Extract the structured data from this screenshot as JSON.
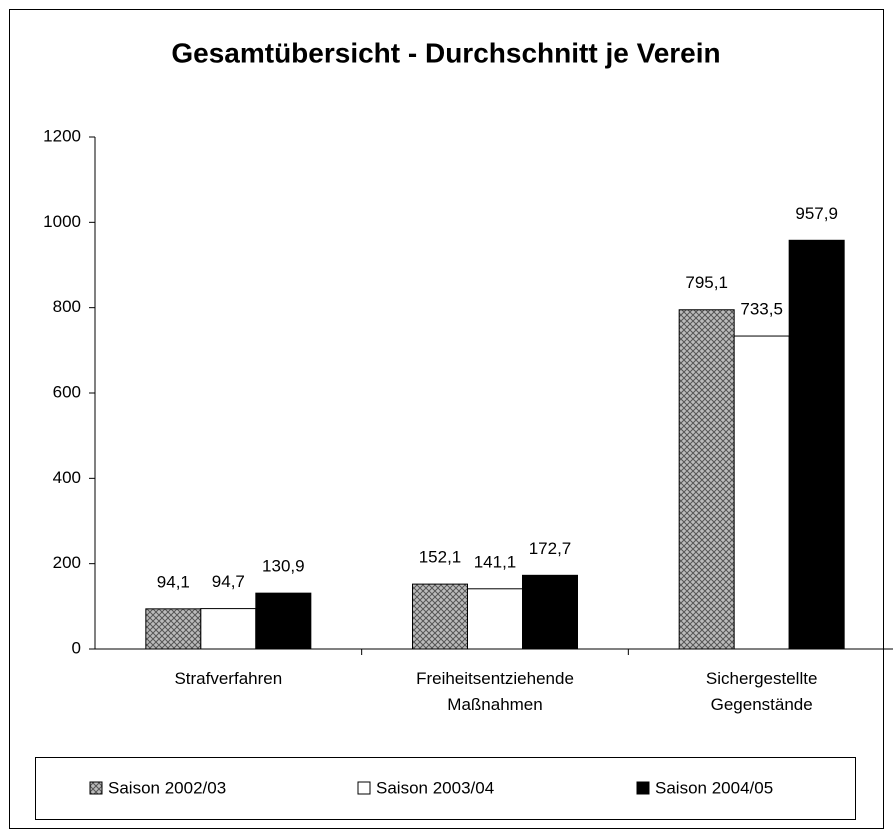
{
  "chart_data": {
    "type": "bar",
    "title": "Gesamtübersicht - Durchschnitt je Verein",
    "categories": [
      "Strafverfahren",
      "Freiheitsentziehende Maßnahmen",
      "Sichergestellte Gegenstände"
    ],
    "series": [
      {
        "name": "Saison 2002/03",
        "color": "#999999",
        "pattern": "crosshatch",
        "values": [
          94.1,
          152.1,
          795.1
        ],
        "value_labels": [
          "94,1",
          "152,1",
          "795,1"
        ]
      },
      {
        "name": "Saison 2003/04",
        "color": "#ffffff",
        "values": [
          94.7,
          141.1,
          733.5
        ],
        "value_labels": [
          "94,7",
          "141,1",
          "733,5"
        ]
      },
      {
        "name": "Saison 2004/05",
        "color": "#000000",
        "values": [
          130.9,
          172.7,
          957.9
        ],
        "value_labels": [
          "130,9",
          "172,7",
          "957,9"
        ]
      }
    ],
    "ylim": [
      0,
      1200
    ],
    "yticks": [
      0,
      200,
      400,
      600,
      800,
      1000,
      1200
    ],
    "grid": false,
    "legend": "bottom"
  }
}
